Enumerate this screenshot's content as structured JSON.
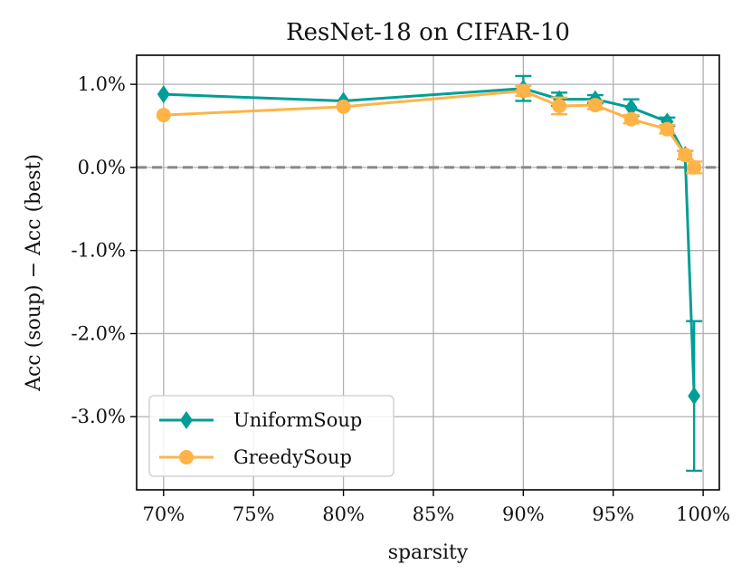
{
  "chart_data": {
    "type": "line",
    "title": "ResNet-18 on CIFAR-10",
    "xlabel": "sparsity",
    "ylabel": "Acc (soup) − Acc (best)",
    "xlim": [
      68.5,
      100.9
    ],
    "ylim": [
      -3.88,
      1.35
    ],
    "x_ticks": [
      70,
      75,
      80,
      85,
      90,
      95,
      100
    ],
    "x_tick_labels": [
      "70%",
      "75%",
      "80%",
      "85%",
      "90%",
      "95%",
      "100%"
    ],
    "y_ticks": [
      1.0,
      0.0,
      -1.0,
      -2.0,
      -3.0
    ],
    "y_tick_labels": [
      "1.0%",
      "0.0%",
      "-1.0%",
      "-2.0%",
      "-3.0%"
    ],
    "grid": true,
    "reference_line": {
      "y": 0.0,
      "style": "dashed",
      "color": "#888888"
    },
    "legend_position": "lower-left",
    "series": [
      {
        "name": "UniformSoup",
        "color": "#009E96",
        "marker": "diamond",
        "x": [
          70,
          80,
          90,
          92,
          94,
          96,
          98,
          99,
          99.5
        ],
        "y": [
          0.88,
          0.8,
          0.95,
          0.82,
          0.82,
          0.72,
          0.55,
          0.15,
          -2.75
        ],
        "error": [
          0.0,
          0.0,
          0.15,
          0.08,
          0.05,
          0.1,
          0.05,
          0.05,
          0.9
        ]
      },
      {
        "name": "GreedySoup",
        "color": "#FFB347",
        "marker": "circle",
        "x": [
          70,
          80,
          90,
          92,
          94,
          96,
          98,
          99,
          99.5
        ],
        "y": [
          0.63,
          0.73,
          0.92,
          0.74,
          0.75,
          0.58,
          0.46,
          0.15,
          0.0
        ],
        "error": [
          0.0,
          0.0,
          0.06,
          0.1,
          0.05,
          0.05,
          0.05,
          0.05,
          0.07
        ]
      }
    ]
  }
}
